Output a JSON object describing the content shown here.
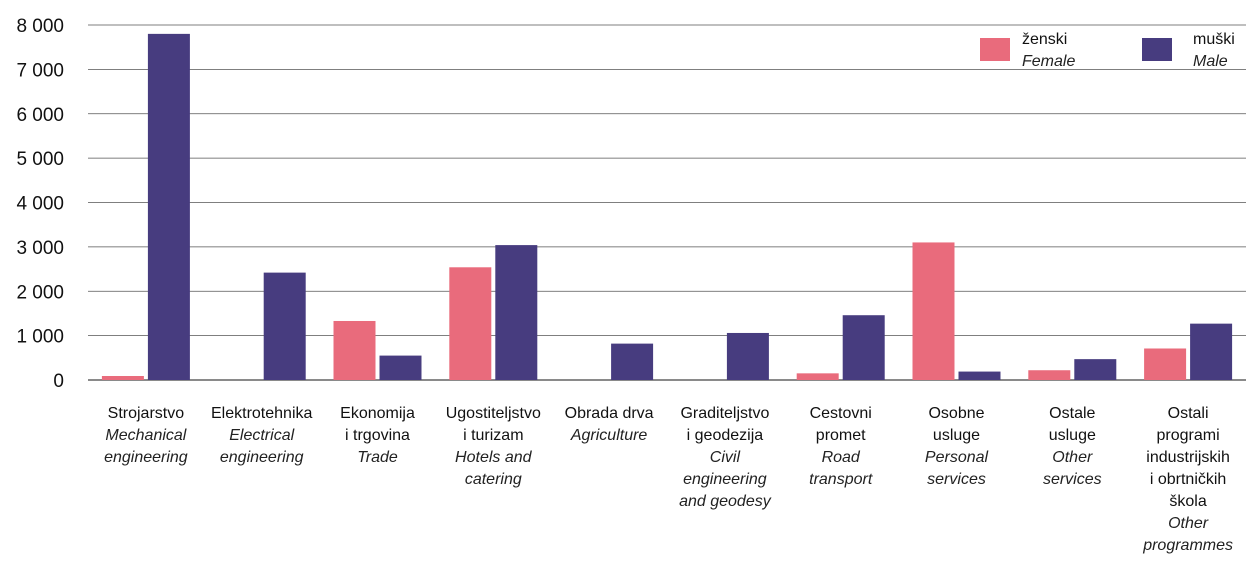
{
  "chart_data": {
    "type": "bar",
    "categories": [
      {
        "hr": [
          "Strojarstvo"
        ],
        "en": [
          "Mechanical",
          "engineering"
        ]
      },
      {
        "hr": [
          "Elektrotehnika"
        ],
        "en": [
          "Electrical",
          "engineering"
        ]
      },
      {
        "hr": [
          "Ekonomija",
          "i trgovina"
        ],
        "en": [
          "Trade"
        ]
      },
      {
        "hr": [
          "Ugostiteljstvo",
          "i turizam"
        ],
        "en": [
          "Hotels and",
          "catering"
        ]
      },
      {
        "hr": [
          "Obrada drva"
        ],
        "en": [
          "Agriculture"
        ]
      },
      {
        "hr": [
          "Graditeljstvo",
          "i geodezija"
        ],
        "en": [
          "Civil",
          "engineering",
          "and geodesy"
        ]
      },
      {
        "hr": [
          "Cestovni",
          "promet"
        ],
        "en": [
          "Road",
          "transport"
        ]
      },
      {
        "hr": [
          "Osobne",
          "usluge"
        ],
        "en": [
          "Personal",
          "services"
        ]
      },
      {
        "hr": [
          "Ostale",
          "usluge"
        ],
        "en": [
          "Other",
          "services"
        ]
      },
      {
        "hr": [
          "Ostali",
          "programi",
          "industrijskih",
          "i obrtničkih",
          "škola"
        ],
        "en": [
          "Other",
          "programmes"
        ]
      }
    ],
    "series": [
      {
        "name": "ženski",
        "name_en": "Female",
        "color": "#E96B7C",
        "values": [
          90,
          0,
          1330,
          2540,
          0,
          0,
          150,
          3100,
          220,
          710
        ]
      },
      {
        "name": "muški",
        "name_en": "Male",
        "color": "#473C7F",
        "values": [
          7800,
          2420,
          550,
          3040,
          820,
          1060,
          1460,
          190,
          470,
          1270
        ]
      }
    ],
    "yticks": [
      "0",
      "1 000",
      "2 000",
      "3 000",
      "4 000",
      "5 000",
      "6 000",
      "7 000",
      "8 000"
    ],
    "ylim": [
      0,
      8000
    ],
    "grid": true,
    "legend": "top-right"
  }
}
